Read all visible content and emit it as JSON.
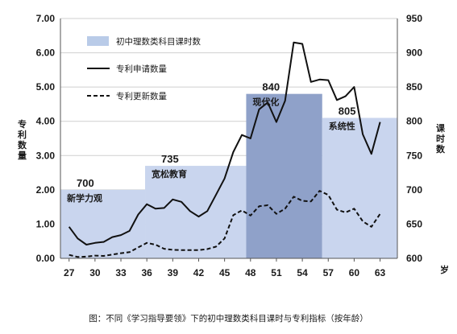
{
  "chart_data": {
    "type": "line",
    "caption": "图：不同《学习指导要领》下的初中理数类科目课时与专利指标（按年龄）",
    "left_axis": {
      "title": "专利数量",
      "range": [
        0,
        7
      ],
      "ticks": [
        "0.00",
        "1.00",
        "2.00",
        "3.00",
        "4.00",
        "5.00",
        "6.00",
        "7.00"
      ]
    },
    "right_axis": {
      "title": "课时数",
      "range": [
        600,
        950
      ],
      "ticks": [
        "600",
        "650",
        "700",
        "750",
        "800",
        "850",
        "900",
        "950"
      ]
    },
    "x_axis": {
      "range": [
        26,
        65
      ],
      "ticks": [
        "27",
        "30",
        "33",
        "36",
        "39",
        "42",
        "45",
        "48",
        "51",
        "54",
        "57",
        "60",
        "63"
      ],
      "unit": "岁"
    },
    "bands": [
      {
        "x_start": 26,
        "x_end": 35.8,
        "hours": 700,
        "value_label": "700",
        "name": "新学力观",
        "color": "#c9d5ee"
      },
      {
        "x_start": 35.8,
        "x_end": 47.5,
        "hours": 735,
        "value_label": "735",
        "name": "宽松教育",
        "color": "#c9d5ee"
      },
      {
        "x_start": 47.5,
        "x_end": 56.3,
        "hours": 840,
        "value_label": "840",
        "name": "现代化",
        "color": "#8fa1c9"
      },
      {
        "x_start": 56.3,
        "x_end": 65,
        "hours": 805,
        "value_label": "805",
        "name": "系统性",
        "color": "#c9d5ee"
      }
    ],
    "legend": {
      "position": "top-left",
      "items": [
        {
          "label": "初中理数类科目课时数",
          "kind": "box",
          "color": "#b9cbe8"
        },
        {
          "label": "专利申请数量",
          "kind": "line"
        },
        {
          "label": "专利更新数量",
          "kind": "dash"
        }
      ]
    },
    "series": [
      {
        "name": "专利申请数量",
        "style": "solid",
        "color": "#111111",
        "x": [
          27,
          28,
          29,
          30,
          31,
          32,
          33,
          34,
          35,
          36,
          37,
          38,
          39,
          40,
          41,
          42,
          43,
          44,
          45,
          46,
          47,
          48,
          49,
          50,
          51,
          52,
          53,
          54,
          55,
          56,
          57,
          58,
          59,
          60,
          61,
          62,
          63
        ],
        "y": [
          0.92,
          0.58,
          0.4,
          0.45,
          0.48,
          0.62,
          0.68,
          0.8,
          1.28,
          1.58,
          1.45,
          1.47,
          1.72,
          1.65,
          1.38,
          1.22,
          1.38,
          1.85,
          2.33,
          3.1,
          3.6,
          3.5,
          4.35,
          4.55,
          3.98,
          4.6,
          6.3,
          6.26,
          5.15,
          5.22,
          5.2,
          4.62,
          4.73,
          5.0,
          3.62,
          3.05,
          3.98
        ]
      },
      {
        "name": "专利更新数量",
        "style": "dashed",
        "color": "#111111",
        "x": [
          27,
          28,
          29,
          30,
          31,
          32,
          33,
          34,
          35,
          36,
          37,
          38,
          39,
          40,
          41,
          42,
          43,
          44,
          45,
          46,
          47,
          48,
          49,
          50,
          51,
          52,
          53,
          54,
          55,
          56,
          57,
          58,
          59,
          60,
          61,
          62,
          63
        ],
        "y": [
          0.1,
          0.04,
          0.05,
          0.08,
          0.07,
          0.11,
          0.15,
          0.18,
          0.32,
          0.45,
          0.4,
          0.28,
          0.25,
          0.24,
          0.24,
          0.24,
          0.27,
          0.34,
          0.58,
          1.26,
          1.4,
          1.25,
          1.52,
          1.55,
          1.3,
          1.45,
          1.8,
          1.68,
          1.66,
          1.97,
          1.85,
          1.42,
          1.34,
          1.45,
          1.08,
          0.92,
          1.3
        ]
      }
    ]
  }
}
